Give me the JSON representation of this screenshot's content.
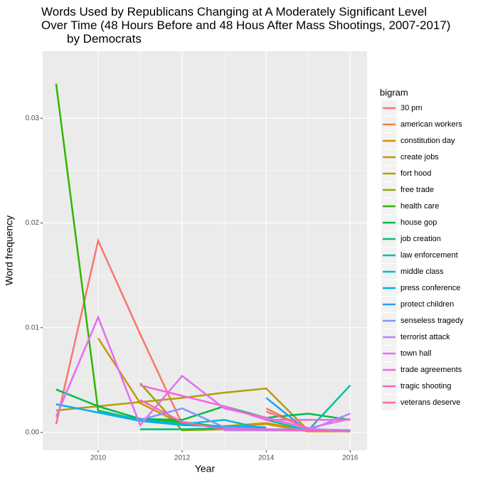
{
  "chart_data": {
    "type": "line",
    "title": [
      "Words Used by Republicans Changing at A Moderately Significant Level",
      "Over Time (48 Hours Before and 48 Hous After Mass Shootings, 2007-2017)",
      "by Democrats"
    ],
    "x_label": "Year",
    "y_label": "Word frequency",
    "legend_title": "bigram",
    "legend_position": "right",
    "grid": true,
    "x": [
      2009,
      2010,
      2011,
      2012,
      2013,
      2014,
      2015,
      2016
    ],
    "xlim": [
      2008.68,
      2016.4
    ],
    "xticks": [
      2010,
      2012,
      2014,
      2016
    ],
    "ylim": [
      -0.0017,
      0.0364
    ],
    "yticks": [
      {
        "value": 0,
        "label": "0.00"
      },
      {
        "value": 0.01,
        "label": "0.01"
      },
      {
        "value": 0.02,
        "label": "0.02"
      },
      {
        "value": 0.03,
        "label": "0.03"
      }
    ],
    "series": [
      {
        "name": "30 pm",
        "color": "#F8766D",
        "values": [
          0.0008,
          0.0183,
          0.0094,
          0.0008,
          null,
          null,
          null,
          null
        ]
      },
      {
        "name": "american workers",
        "color": "#EC823C",
        "values": [
          null,
          null,
          null,
          null,
          null,
          0.0023,
          0.0003,
          0.0002
        ]
      },
      {
        "name": "constitution day",
        "color": "#DD8D00",
        "values": [
          null,
          null,
          null,
          null,
          0.0006,
          0.0009,
          0.0002,
          0.0002
        ]
      },
      {
        "name": "create jobs",
        "color": "#CA9700",
        "values": [
          null,
          0.009,
          0.0028,
          0.0008,
          0.0005,
          0.0008,
          0.0001,
          0.0001
        ]
      },
      {
        "name": "fort hood",
        "color": "#B3A000",
        "values": [
          0.0021,
          0.0025,
          0.0029,
          0.0033,
          0.0038,
          0.0042,
          0.0002,
          0.0001
        ]
      },
      {
        "name": "free trade",
        "color": "#97A900",
        "values": [
          null,
          null,
          0.0047,
          0.0002,
          0.0003,
          0.0002,
          0.0002,
          0.0002
        ]
      },
      {
        "name": "health care",
        "color": "#2FB600",
        "values": [
          0.0333,
          0.0021,
          0.0012,
          0.001,
          0.0005,
          0.0003,
          0.0002,
          0.0002
        ]
      },
      {
        "name": "house gop",
        "color": "#00BB4B",
        "values": [
          0.0041,
          0.0025,
          0.0013,
          0.0012,
          0.0025,
          0.0014,
          0.0018,
          0.0012
        ]
      },
      {
        "name": "job creation",
        "color": "#00BF76",
        "values": [
          null,
          null,
          0.0003,
          0.0003,
          0.0004,
          0.0003,
          0.0002,
          0.0002
        ]
      },
      {
        "name": "law enforcement",
        "color": "#00C0A0",
        "values": [
          null,
          null,
          null,
          null,
          null,
          0.0012,
          0.0002,
          0.0045
        ]
      },
      {
        "name": "middle class",
        "color": "#00BCD6",
        "values": [
          null,
          0.002,
          0.0012,
          0.0008,
          0.0012,
          0.0003,
          null,
          null
        ]
      },
      {
        "name": "press conference",
        "color": "#00B0EE",
        "values": [
          0.0027,
          0.0019,
          0.0011,
          0.0007,
          0.0006,
          0.0005,
          null,
          null
        ]
      },
      {
        "name": "protect children",
        "color": "#1FA0FF",
        "values": [
          null,
          null,
          null,
          null,
          null,
          0.0033,
          0.0001,
          null
        ]
      },
      {
        "name": "senseless tragedy",
        "color": "#7F96FF",
        "values": [
          null,
          null,
          0.0012,
          0.0023,
          0.0005,
          0.0003,
          0.0003,
          0.0002
        ]
      },
      {
        "name": "terrorist attack",
        "color": "#BC81FF",
        "values": [
          null,
          null,
          null,
          null,
          0.0002,
          0.0002,
          0.0002,
          0.0018
        ]
      },
      {
        "name": "town hall",
        "color": "#E26EF7",
        "values": [
          0.0015,
          0.011,
          0.0007,
          0.0054,
          0.0023,
          0.0014,
          0.0004,
          0.0013
        ]
      },
      {
        "name": "trade agreements",
        "color": "#F863DF",
        "values": [
          null,
          null,
          0.0045,
          0.0035,
          0.0025,
          0.0012,
          0.0012,
          0.0012
        ]
      },
      {
        "name": "tragic shooting",
        "color": "#FF62BC",
        "values": [
          null,
          null,
          0.0031,
          0.001,
          0.0003,
          0.0003,
          0.0002,
          0.0001
        ]
      },
      {
        "name": "veterans deserve",
        "color": "#FF6C91",
        "values": [
          null,
          null,
          null,
          null,
          null,
          0.002,
          0.0004,
          null
        ]
      }
    ]
  }
}
